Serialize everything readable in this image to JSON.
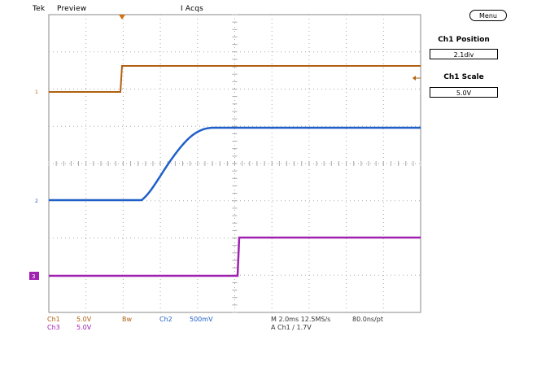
{
  "header": {
    "brand": "Tek",
    "mode": "Preview",
    "acq_state": "I Acqs"
  },
  "menu": {
    "label": "Menu"
  },
  "side_panel": {
    "ch1_position": {
      "title": "Ch1 Position",
      "value": "2.1div"
    },
    "ch1_scale": {
      "title": "Ch1 Scale",
      "value": "5.0V"
    }
  },
  "footer": {
    "ch1": {
      "name": "Ch1",
      "scale": "5.0V"
    },
    "ch3": {
      "name": "Ch3",
      "scale": "5.0V"
    },
    "bw": "Bw",
    "ch2": {
      "name": "Ch2",
      "scale": "500mV"
    },
    "timebase": "M 2.0ms 12.5MS/s",
    "record": "80.0ns/pt",
    "trigger": "A  Ch1  ∕  1.7V"
  },
  "markers": {
    "ch1": "1",
    "ch2": "2",
    "ch3": "3"
  },
  "colors": {
    "ch1": "#b06010",
    "ch2": "#1f5fc8",
    "ch3": "#a020b0",
    "grid": "#aaaaaa"
  }
}
